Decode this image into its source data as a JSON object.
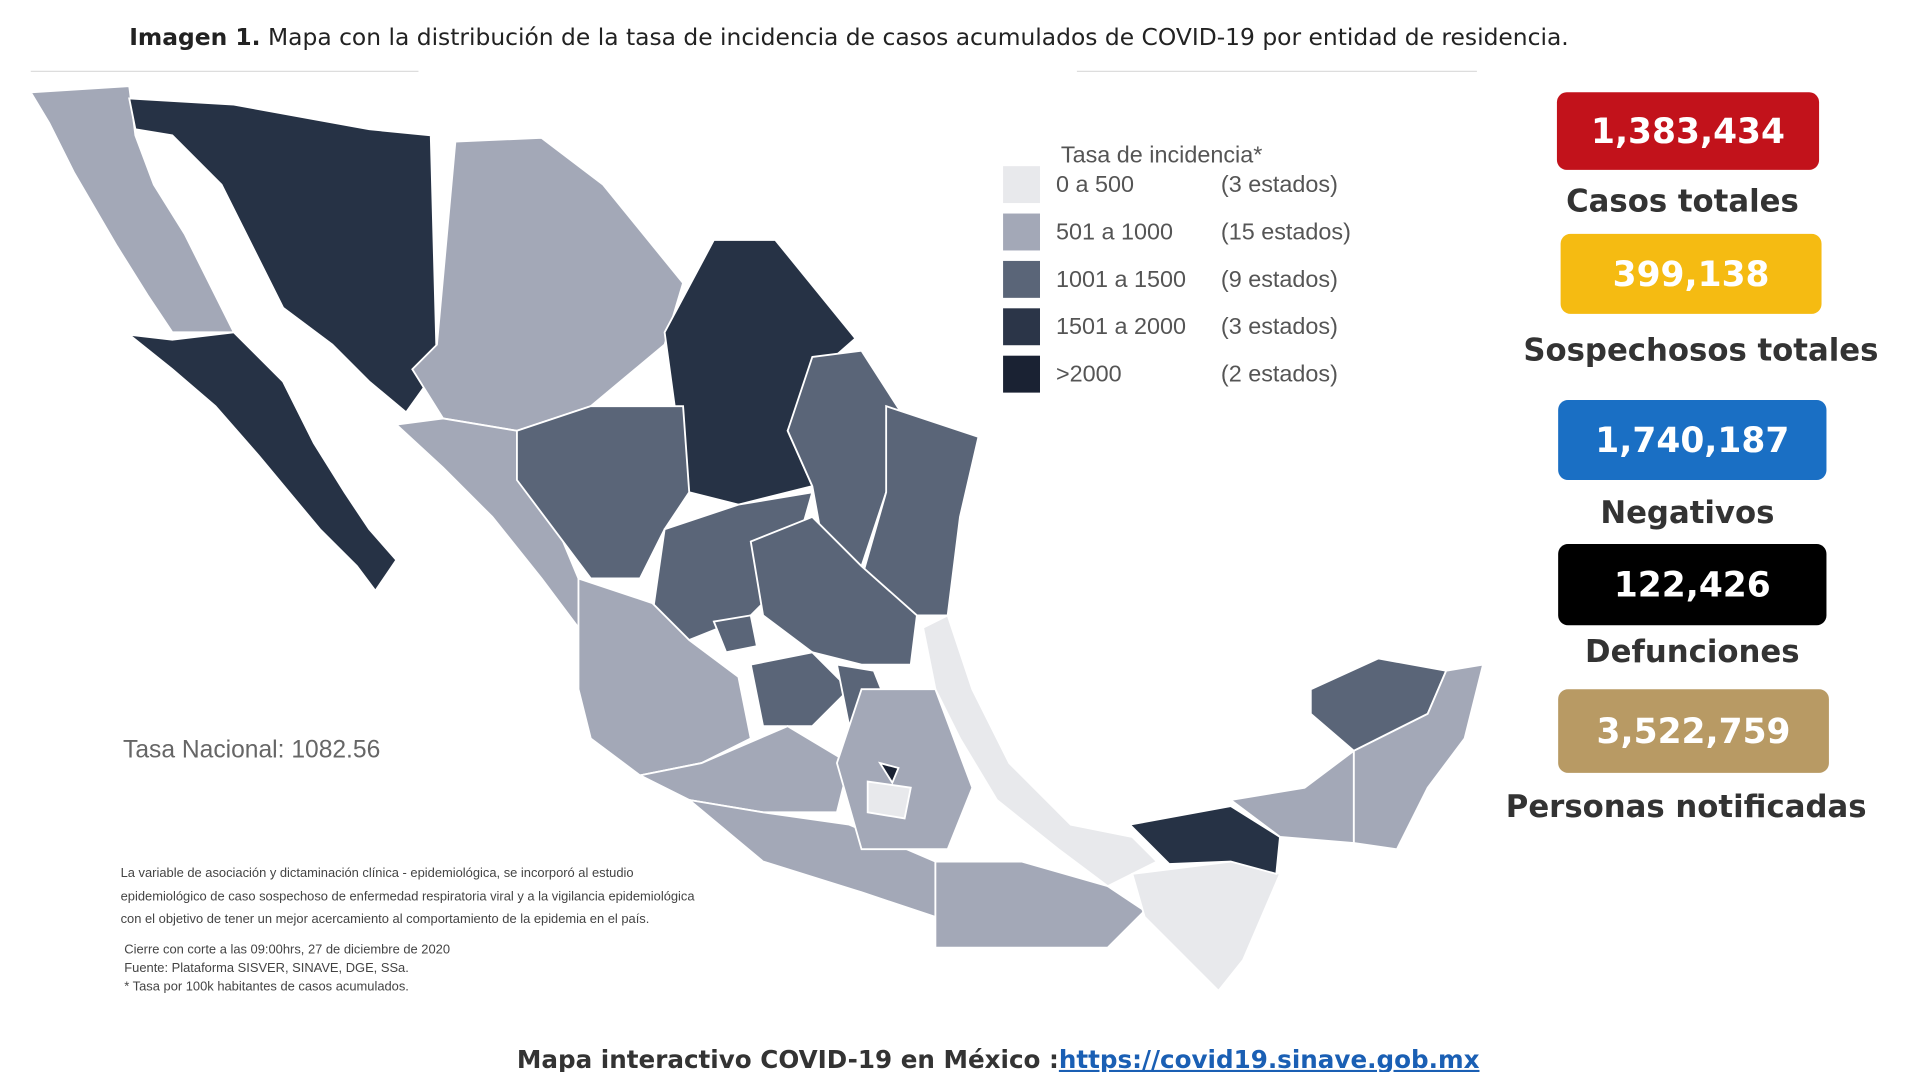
{
  "header": {
    "label": "Imagen 1.",
    "title": "Mapa con la distribución de la tasa de incidencia de casos acumulados de COVID-19 por entidad de residencia."
  },
  "legend": {
    "title": "Tasa de incidencia*",
    "items": [
      {
        "range": "0 a 500",
        "count": "(3 estados)"
      },
      {
        "range": "501 a 1000",
        "count": "(15 estados)"
      },
      {
        "range": "1001 a 1500",
        "count": "(9 estados)"
      },
      {
        "range": "1501 a 2000",
        "count": "(3 estados)"
      },
      {
        "range": ">2000",
        "count": "(2 estados)"
      }
    ]
  },
  "national_rate": "Tasa Nacional: 1082.56",
  "notes": [
    "La variable de asociación y dictaminación clínica - epidemiológica, se incorporó al estudio",
    "epidemiológico de caso sospechoso de enfermedad respiratoria viral y a la vigilancia epidemiológica",
    "con el objetivo de tener un mejor acercamiento al comportamiento de la epidemia en el país.",
    "Cierre con corte a las 09:00hrs, 27 de diciembre de 2020",
    "Fuente: Plataforma SISVER, SINAVE, DGE, SSa.",
    "* Tasa por 100k habitantes de casos acumulados."
  ],
  "stats": [
    {
      "value": "1,383,434",
      "label": "Casos totales"
    },
    {
      "value": "399,138",
      "label": "Sospechosos totales"
    },
    {
      "value": "1,740,187",
      "label": "Negativos"
    },
    {
      "value": "122,426",
      "label": "Defunciones"
    },
    {
      "value": "3,522,759",
      "label": "Personas notificadas"
    }
  ],
  "footer": {
    "text": "Mapa interactivo COVID-19 en México :",
    "link": "https://covid19.sinave.gob.mx"
  }
}
